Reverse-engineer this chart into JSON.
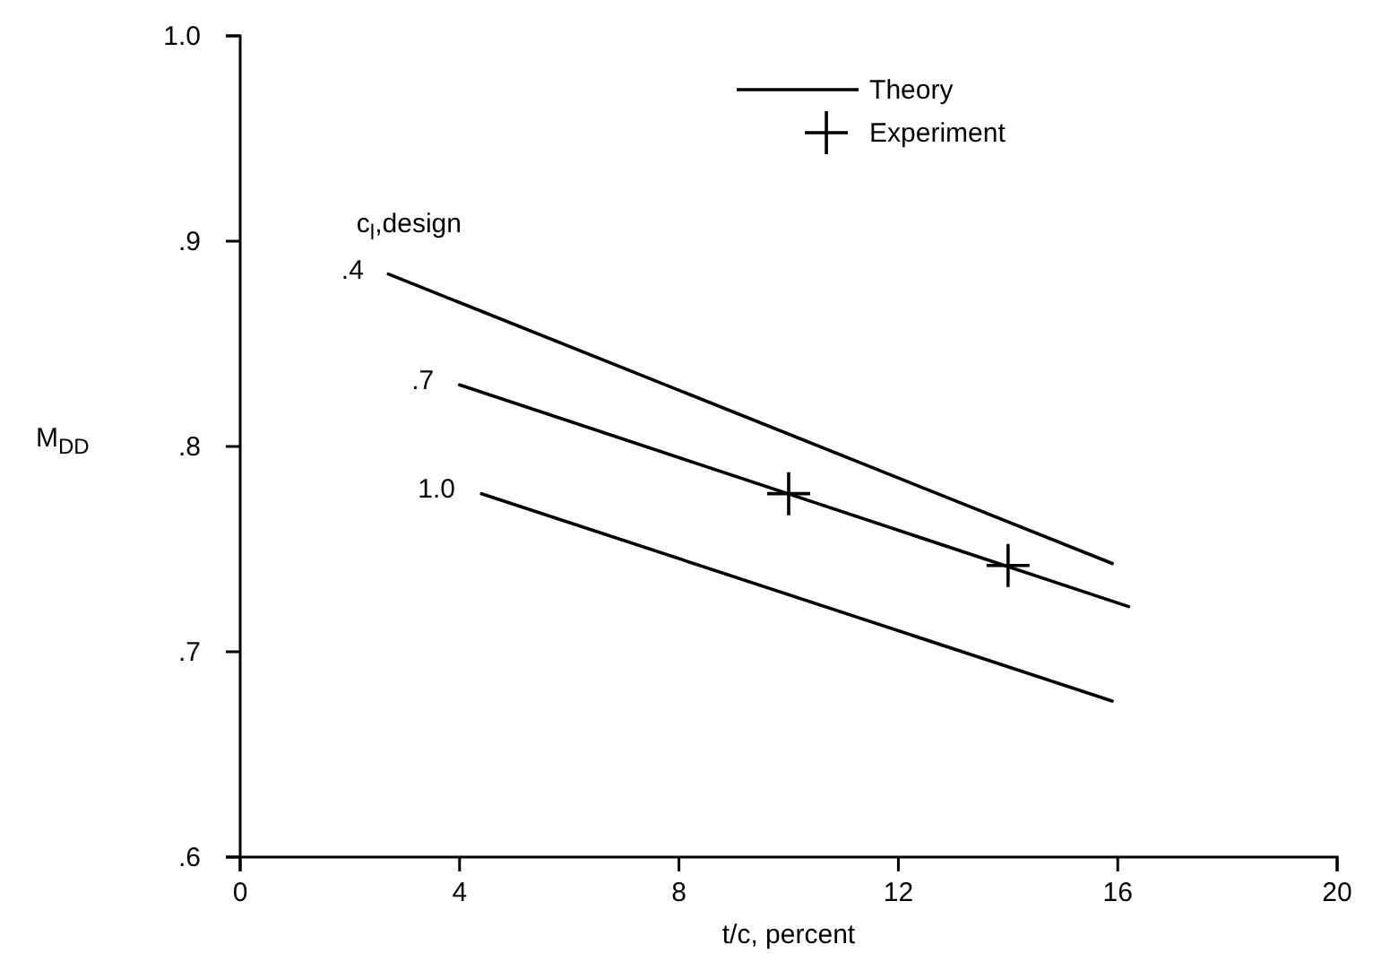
{
  "chart_data": {
    "type": "line",
    "xlabel": "t/c, percent",
    "ylabel": "M$_{DD}$",
    "xlim": [
      0,
      20
    ],
    "xticks": [
      0,
      4,
      8,
      12,
      16,
      20
    ],
    "ylim": [
      0.6,
      1.0
    ],
    "yticks": [
      {
        "value": 0.6,
        "label": ".6"
      },
      {
        "value": 0.7,
        "label": ".7"
      },
      {
        "value": 0.8,
        "label": ".8"
      },
      {
        "value": 0.9,
        "label": ".9"
      },
      {
        "value": 1.0,
        "label": "1.0"
      }
    ],
    "grid": false,
    "legend": "top right",
    "line_style": "solid",
    "series": [
      {
        "name": "Theory",
        "color": "#000000",
        "x": [
          2.7,
          15.9
        ],
        "values": [
          0.884,
          0.743
        ]
      },
      {
        "color": "#000000",
        "x": [
          4.0,
          16.2
        ],
        "values": [
          0.83,
          0.722
        ]
      },
      {
        "color": "#000000",
        "x": [
          4.4,
          15.9
        ],
        "values": [
          0.777,
          0.676
        ]
      },
      {
        "name": "Experiment",
        "type": "scatter",
        "marker": "cross",
        "color": "#000000",
        "x": [
          10.0,
          14.0
        ],
        "values": [
          0.777,
          0.742
        ]
      }
    ],
    "annotations": [
      "c$_{l}$,design",
      {
        "text": ".4",
        "x": 2.71,
        "y": 0.8835
      },
      {
        "text": ".7",
        "x": 3.99,
        "y": 0.8296
      },
      {
        "text": "1.0",
        "x": 4.38,
        "y": 0.777
      }
    ]
  }
}
